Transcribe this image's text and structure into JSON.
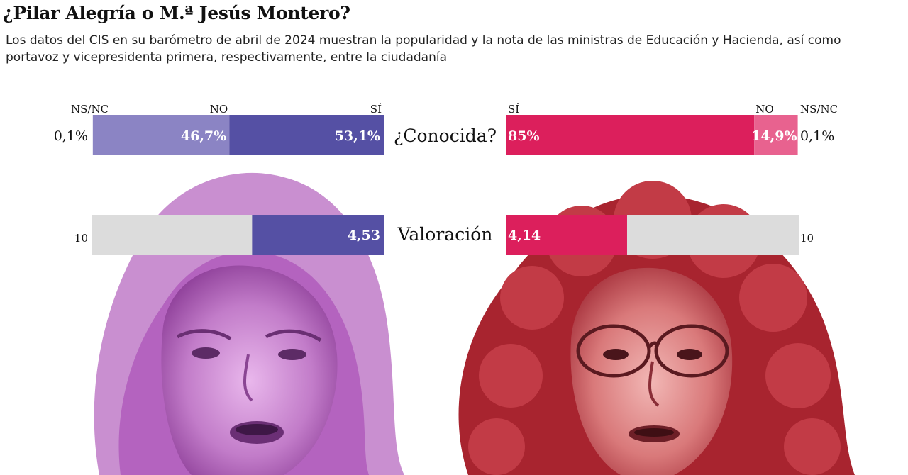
{
  "header": {
    "title": "¿Pilar Alegría o M.ª Jesús Montero?",
    "subtitle": "Los datos del CIS en su barómetro de abril de 2024 muestran la popularidad y la nota de las ministras de Educación y Hacienda, así como portavoz y vicepresidenta primera, respectivamente, entre la ciudadanía"
  },
  "colors": {
    "purple_dark": "#5550a4",
    "purple_light": "#8b84c4",
    "red_dark": "#dc1f5c",
    "red_light": "#e8628f",
    "track": "#dcdcdc",
    "photo_left_tint": "#b45cc0",
    "photo_right_tint": "#c0303f"
  },
  "photos": {
    "left_icon": "portrait-pilar-alegria",
    "right_icon": "portrait-maria-jesus-montero"
  },
  "chart_data": [
    {
      "type": "bar",
      "stacked": true,
      "category_label": "¿Conocida?",
      "series_labels": {
        "si": "SÍ",
        "no": "NO",
        "nsnc": "NS/NC"
      },
      "left": {
        "si": 53.1,
        "no": 46.7,
        "nsnc": 0.1,
        "si_label": "53,1%",
        "no_label": "46,7%",
        "nsnc_label": "0,1%"
      },
      "right": {
        "si": 85,
        "no": 14.9,
        "nsnc": 0.1,
        "si_label": "85%",
        "no_label": "14,9%",
        "nsnc_label": "0,1%"
      },
      "xlim": [
        0,
        100
      ]
    },
    {
      "type": "bar",
      "category_label": "Valoración",
      "scale_max": 10,
      "scale_max_label": "10",
      "left": {
        "value": 4.53,
        "label": "4,53"
      },
      "right": {
        "value": 4.14,
        "label": "4,14"
      },
      "xlim": [
        0,
        10
      ]
    }
  ]
}
